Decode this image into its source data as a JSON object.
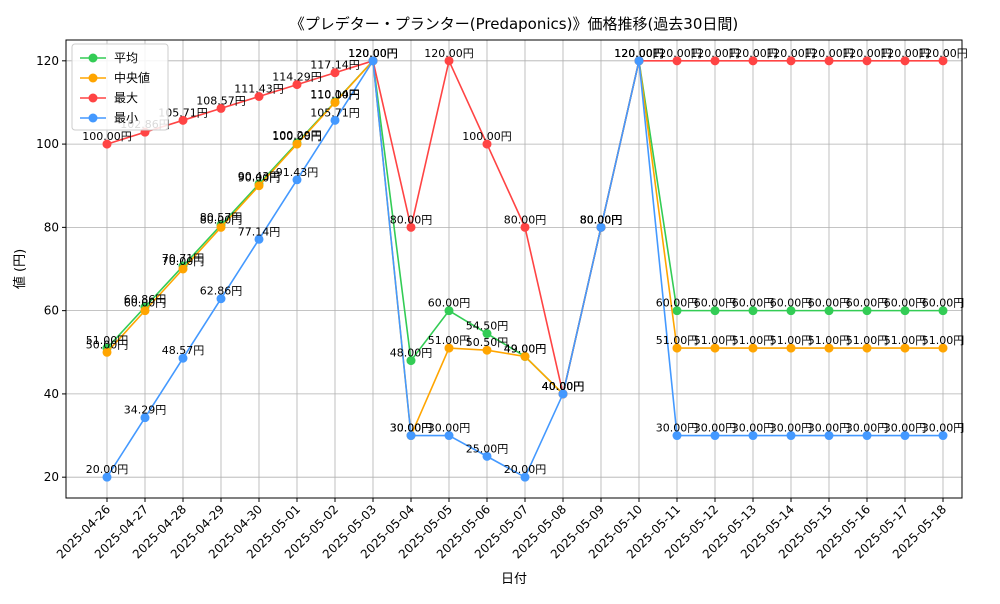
{
  "chart_data": {
    "type": "line",
    "title": "《プレデター・プランター(Predaponics)》価格推移(過去30日間)",
    "xlabel": "日付",
    "ylabel": "値 (円)",
    "ylim": [
      15,
      125
    ],
    "yticks": [
      20,
      40,
      60,
      80,
      100,
      120
    ],
    "grid": true,
    "legend_position": "top-left",
    "value_suffix": "円",
    "categories": [
      "2025-04-26",
      "2025-04-27",
      "2025-04-28",
      "2025-04-29",
      "2025-04-30",
      "2025-05-01",
      "2025-05-02",
      "2025-05-03",
      "2025-05-04",
      "2025-05-05",
      "2025-05-06",
      "2025-05-07",
      "2025-05-08",
      "2025-05-09",
      "2025-05-10",
      "2025-05-11",
      "2025-05-12",
      "2025-05-13",
      "2025-05-14",
      "2025-05-15",
      "2025-05-16",
      "2025-05-17",
      "2025-05-18"
    ],
    "series": [
      {
        "name": "平均",
        "color": "#33cc55",
        "values": [
          51.0,
          60.86,
          70.71,
          80.57,
          90.43,
          100.29,
          110.14,
          120.0,
          48.0,
          60.0,
          54.5,
          49.0,
          40.0,
          80.0,
          120.0,
          60.0,
          60.0,
          60.0,
          60.0,
          60.0,
          60.0,
          60.0,
          60.0
        ]
      },
      {
        "name": "中央値",
        "color": "#ffa500",
        "values": [
          50.0,
          60.0,
          70.0,
          80.0,
          90.0,
          100.0,
          110.0,
          120.0,
          30.0,
          51.0,
          50.5,
          49.0,
          40.0,
          80.0,
          120.0,
          51.0,
          51.0,
          51.0,
          51.0,
          51.0,
          51.0,
          51.0,
          51.0
        ]
      },
      {
        "name": "最大",
        "color": "#ff4444",
        "values": [
          100.0,
          102.86,
          105.71,
          108.57,
          111.43,
          114.29,
          117.14,
          120.0,
          80.0,
          120.0,
          100.0,
          80.0,
          40.0,
          80.0,
          120.0,
          120.0,
          120.0,
          120.0,
          120.0,
          120.0,
          120.0,
          120.0,
          120.0
        ]
      },
      {
        "name": "最小",
        "color": "#4499ff",
        "values": [
          20.0,
          34.29,
          48.57,
          62.86,
          77.14,
          91.43,
          105.71,
          120.0,
          30.0,
          30.0,
          25.0,
          20.0,
          40.0,
          80.0,
          120.0,
          30.0,
          30.0,
          30.0,
          30.0,
          30.0,
          30.0,
          30.0,
          30.0
        ]
      }
    ]
  }
}
